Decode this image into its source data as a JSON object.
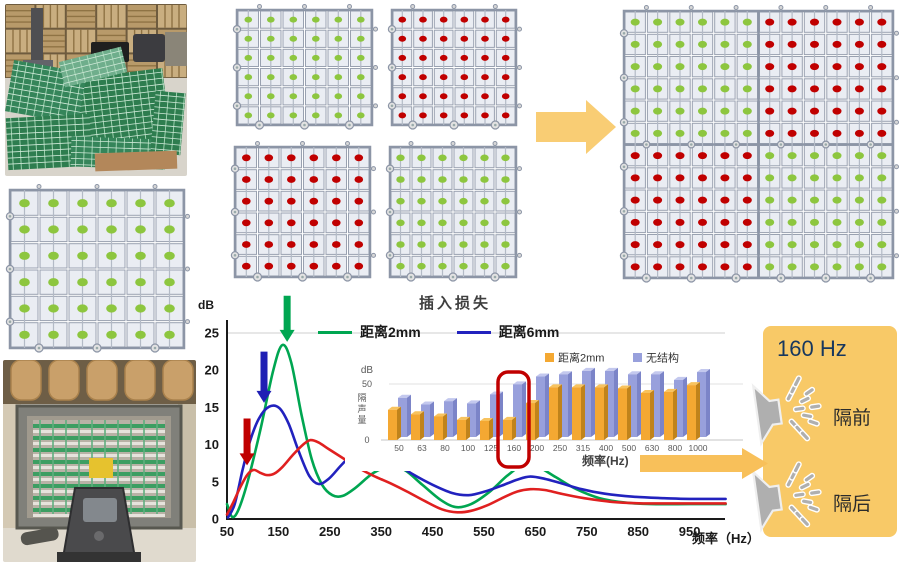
{
  "colors": {
    "green_dot": "#8DC63F",
    "red_dot": "#C00000",
    "grid_line": "#8C95A6",
    "cell_fill": "#EAEDF3",
    "accent_arrow": "#F8C05A",
    "panel_bg": "#F8C967",
    "panel_title_color": "#17375E",
    "curve_green": "#00A651",
    "curve_blue": "#2222BE",
    "curve_red": "#E02020",
    "bar_orange": "#F4A832",
    "bar_purple": "#98A0DC",
    "highlight_red": "#C00000"
  },
  "grids": {
    "left_large": {
      "rows": 6,
      "cols": 6,
      "fill": "green"
    },
    "top_a": {
      "rows": 6,
      "cols": 6,
      "fill": "green"
    },
    "top_b": {
      "rows": 6,
      "cols": 6,
      "fill": "red"
    },
    "mid_c": {
      "rows": 6,
      "cols": 6,
      "fill": "red"
    },
    "mid_d": {
      "rows": 6,
      "cols": 6,
      "fill": "green"
    },
    "combined": {
      "rows": 12,
      "cols": 12,
      "quadrants": [
        "green",
        "red",
        "red",
        "green"
      ]
    }
  },
  "chart_data": [
    {
      "type": "line",
      "title": "插入损失",
      "ylabel": "dB",
      "xlabel": "频率（Hz）",
      "ylim": [
        0,
        25
      ],
      "yticks": [
        0,
        5,
        10,
        15,
        20,
        25
      ],
      "xticks": [
        50,
        150,
        250,
        350,
        450,
        550,
        650,
        750,
        850,
        950
      ],
      "grid": "top-line-only",
      "legend_position": "top",
      "series": [
        {
          "name": "距离2mm",
          "color": "#00A651",
          "points": [
            [
              50,
              2
            ],
            [
              60,
              0.3
            ],
            [
              72,
              1.2
            ],
            [
              90,
              5
            ],
            [
              115,
              12
            ],
            [
              140,
              20
            ],
            [
              158,
              23.4
            ],
            [
              175,
              21
            ],
            [
              195,
              14
            ],
            [
              215,
              8
            ],
            [
              235,
              4.6
            ],
            [
              255,
              3.2
            ],
            [
              275,
              3.1
            ],
            [
              300,
              4.2
            ],
            [
              335,
              6.2
            ],
            [
              365,
              7
            ],
            [
              395,
              6.6
            ],
            [
              430,
              4.6
            ],
            [
              465,
              2.6
            ],
            [
              495,
              1.6
            ],
            [
              525,
              2
            ],
            [
              560,
              3.6
            ],
            [
              595,
              5.8
            ],
            [
              625,
              7.2
            ],
            [
              655,
              7
            ],
            [
              690,
              5.6
            ],
            [
              730,
              4
            ],
            [
              775,
              2.8
            ],
            [
              825,
              2.2
            ],
            [
              875,
              2
            ],
            [
              950,
              2
            ],
            [
              1020,
              2
            ]
          ]
        },
        {
          "name": "距离6mm",
          "color": "#2222BE",
          "points": [
            [
              52,
              0.2
            ],
            [
              65,
              2
            ],
            [
              80,
              6.5
            ],
            [
              95,
              10.5
            ],
            [
              112,
              13.5
            ],
            [
              132,
              15.1
            ],
            [
              152,
              14.9
            ],
            [
              170,
              12.8
            ],
            [
              190,
              9
            ],
            [
              210,
              5.8
            ],
            [
              228,
              4.7
            ],
            [
              248,
              5.4
            ],
            [
              272,
              7.2
            ],
            [
              298,
              9
            ],
            [
              318,
              9.6
            ],
            [
              342,
              9
            ],
            [
              375,
              7.6
            ],
            [
              412,
              6
            ],
            [
              450,
              4.6
            ],
            [
              488,
              3.5
            ],
            [
              520,
              3.2
            ],
            [
              552,
              3.7
            ],
            [
              585,
              4.5
            ],
            [
              615,
              5.3
            ],
            [
              640,
              5.7
            ],
            [
              668,
              5.4
            ],
            [
              700,
              4.8
            ],
            [
              740,
              4
            ],
            [
              785,
              3.4
            ],
            [
              840,
              3
            ],
            [
              900,
              2.8
            ],
            [
              950,
              2.7
            ],
            [
              1020,
              2.7
            ]
          ]
        },
        {
          "name": "",
          "color": "#E02020",
          "points": [
            [
              50,
              0.6
            ],
            [
              62,
              2.2
            ],
            [
              76,
              4.3
            ],
            [
              90,
              6
            ],
            [
              102,
              6.6
            ],
            [
              115,
              6.2
            ],
            [
              128,
              5.9
            ],
            [
              142,
              6.1
            ],
            [
              158,
              7
            ],
            [
              178,
              8.6
            ],
            [
              198,
              10
            ],
            [
              212,
              10.6
            ],
            [
              228,
              10.3
            ],
            [
              248,
              9.4
            ],
            [
              275,
              8.2
            ],
            [
              305,
              6.9
            ],
            [
              335,
              5.8
            ],
            [
              368,
              4.8
            ],
            [
              400,
              3.7
            ],
            [
              435,
              2.4
            ],
            [
              468,
              1.3
            ],
            [
              498,
              0.9
            ],
            [
              525,
              1.1
            ],
            [
              555,
              1.8
            ],
            [
              588,
              2.9
            ],
            [
              615,
              3.7
            ],
            [
              640,
              4
            ],
            [
              668,
              3.9
            ],
            [
              700,
              3.4
            ],
            [
              745,
              2.8
            ],
            [
              800,
              2.3
            ],
            [
              860,
              2.1
            ],
            [
              950,
              2.1
            ],
            [
              1020,
              2.1
            ]
          ]
        }
      ],
      "arrows": [
        {
          "color": "#00A651",
          "x_hz": 167,
          "from_db": 30,
          "to_db": 23.8
        },
        {
          "color": "#1F1FB4",
          "x_hz": 122,
          "from_db": 22.5,
          "to_db": 15.6
        },
        {
          "color": "#C00000",
          "x_hz": 89,
          "from_db": 13.5,
          "to_db": 7.2
        }
      ]
    },
    {
      "type": "bar",
      "title": "",
      "unit": "dB",
      "ylabel": "隔声量",
      "xlabel": "频率(Hz)",
      "ylim": [
        0,
        50
      ],
      "ytick_labels": [
        "50",
        "0"
      ],
      "categories": [
        "50",
        "63",
        "80",
        "100",
        "125",
        "160",
        "200",
        "250",
        "315",
        "400",
        "500",
        "630",
        "800",
        "1000"
      ],
      "series": [
        {
          "name": "距离2mm",
          "color": "#F4A832",
          "values": [
            27,
            23,
            21,
            18,
            17,
            18,
            33,
            47,
            47,
            47,
            46,
            42,
            43,
            49
          ]
        },
        {
          "name": "无结构",
          "color": "#98A0DC",
          "values": [
            35,
            29,
            32,
            30,
            38,
            47,
            54,
            56,
            59,
            59,
            56,
            56,
            51,
            58
          ]
        }
      ],
      "highlight_category": "160",
      "legend_position": "top-right"
    }
  ],
  "result_panel": {
    "title": "160 Hz",
    "items": [
      {
        "label": "隔前"
      },
      {
        "label": "隔后"
      }
    ]
  }
}
